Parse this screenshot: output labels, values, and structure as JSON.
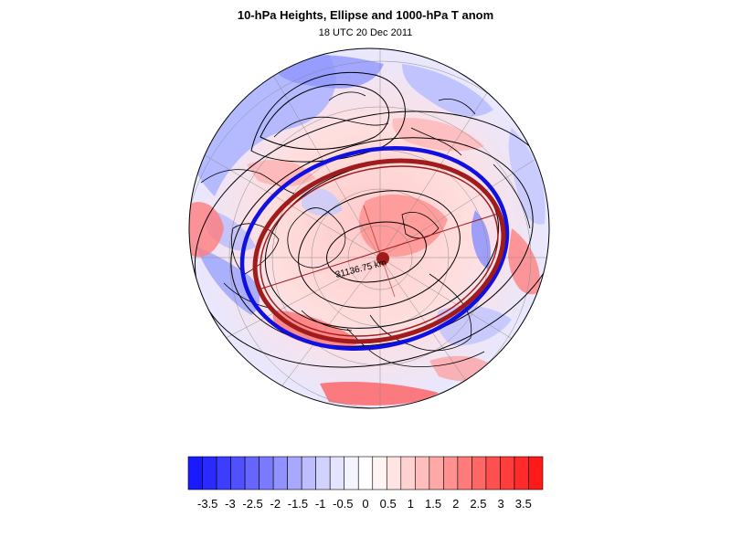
{
  "title": "10-hPa Heights, Ellipse and 1000-hPa T anom",
  "subtitle": "18 UTC 20 Dec 2011",
  "map": {
    "projection": "north polar stereographic",
    "contour_label": "31136.75 km",
    "colors": {
      "ellipse": "#a01c1c",
      "blue_contour": "#1010e0",
      "height_contours": "#000000",
      "coastlines": "#000000",
      "gridlines": "#8c8c8c"
    }
  },
  "colorbar": {
    "variable": "1000-hPa temperature anomaly",
    "labels": [
      "-3.5",
      "-3",
      "-2.5",
      "-2",
      "-1.5",
      "-1",
      "-0.5",
      "0",
      "0.5",
      "1",
      "1.5",
      "2",
      "2.5",
      "3",
      "3.5"
    ],
    "colors": [
      "#1a1aff",
      "#2a2aff",
      "#3d3dff",
      "#5050ff",
      "#6666ff",
      "#7a7aff",
      "#9191ff",
      "#a8a8ff",
      "#bebeff",
      "#d2d2ff",
      "#e4e4ff",
      "#f4f4ff",
      "#ffffff",
      "#fff4f4",
      "#ffe4e4",
      "#ffd2d2",
      "#ffbebe",
      "#ffa8a8",
      "#ff9191",
      "#ff7a7a",
      "#ff6666",
      "#ff5050",
      "#ff3d3d",
      "#ff2a2a",
      "#ff1a1a"
    ]
  }
}
